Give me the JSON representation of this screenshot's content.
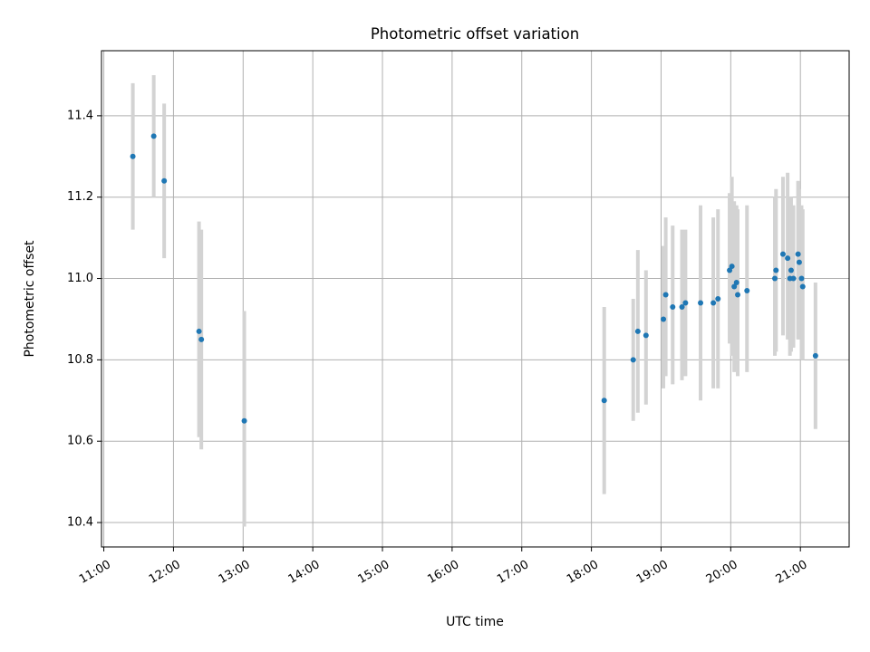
{
  "chart_data": {
    "type": "scatter",
    "title": "Photometric offset variation",
    "xlabel": "UTC time",
    "ylabel": "Photometric offset",
    "xlim": [
      "10:58",
      "21:42"
    ],
    "ylim": [
      10.34,
      11.56
    ],
    "x_ticks": [
      "11:00",
      "12:00",
      "13:00",
      "14:00",
      "15:00",
      "16:00",
      "17:00",
      "18:00",
      "19:00",
      "20:00",
      "21:00"
    ],
    "y_ticks": [
      "10.4",
      "10.6",
      "10.8",
      "11.0",
      "11.2",
      "11.4"
    ],
    "grid": true,
    "colors": {
      "point": "#1f77b4",
      "errorbar": "#d3d3d3",
      "grid": "#b0b0b0"
    },
    "series": [
      {
        "points": [
          {
            "x": "11:25",
            "y": 11.3,
            "ylow": 11.12,
            "yhigh": 11.48
          },
          {
            "x": "11:43",
            "y": 11.35,
            "ylow": 11.2,
            "yhigh": 11.5
          },
          {
            "x": "11:52",
            "y": 11.24,
            "ylow": 11.05,
            "yhigh": 11.43
          },
          {
            "x": "12:22",
            "y": 10.87,
            "ylow": 10.61,
            "yhigh": 11.14
          },
          {
            "x": "12:24",
            "y": 10.85,
            "ylow": 10.58,
            "yhigh": 11.12
          },
          {
            "x": "13:01",
            "y": 10.65,
            "ylow": 10.39,
            "yhigh": 10.92
          },
          {
            "x": "18:11",
            "y": 10.7,
            "ylow": 10.47,
            "yhigh": 10.93
          },
          {
            "x": "18:36",
            "y": 10.8,
            "ylow": 10.65,
            "yhigh": 10.95
          },
          {
            "x": "18:40",
            "y": 10.87,
            "ylow": 10.67,
            "yhigh": 11.07
          },
          {
            "x": "18:47",
            "y": 10.86,
            "ylow": 10.69,
            "yhigh": 11.02
          },
          {
            "x": "19:02",
            "y": 10.9,
            "ylow": 10.73,
            "yhigh": 11.08
          },
          {
            "x": "19:04",
            "y": 10.96,
            "ylow": 10.76,
            "yhigh": 11.15
          },
          {
            "x": "19:10",
            "y": 10.93,
            "ylow": 10.74,
            "yhigh": 11.13
          },
          {
            "x": "19:18",
            "y": 10.93,
            "ylow": 10.75,
            "yhigh": 11.12
          },
          {
            "x": "19:21",
            "y": 10.94,
            "ylow": 10.76,
            "yhigh": 11.12
          },
          {
            "x": "19:34",
            "y": 10.94,
            "ylow": 10.7,
            "yhigh": 11.18
          },
          {
            "x": "19:45",
            "y": 10.94,
            "ylow": 10.73,
            "yhigh": 11.15
          },
          {
            "x": "19:49",
            "y": 10.95,
            "ylow": 10.73,
            "yhigh": 11.17
          },
          {
            "x": "19:59",
            "y": 11.02,
            "ylow": 10.84,
            "yhigh": 11.21
          },
          {
            "x": "20:01",
            "y": 11.03,
            "ylow": 10.81,
            "yhigh": 11.25
          },
          {
            "x": "20:03",
            "y": 10.98,
            "ylow": 10.77,
            "yhigh": 11.19
          },
          {
            "x": "20:05",
            "y": 10.99,
            "ylow": 10.79,
            "yhigh": 11.18
          },
          {
            "x": "20:06",
            "y": 10.96,
            "ylow": 10.76,
            "yhigh": 11.17
          },
          {
            "x": "20:14",
            "y": 10.97,
            "ylow": 10.77,
            "yhigh": 11.18
          },
          {
            "x": "20:38",
            "y": 11.0,
            "ylow": 10.81,
            "yhigh": 11.2
          },
          {
            "x": "20:39",
            "y": 11.02,
            "ylow": 10.82,
            "yhigh": 11.22
          },
          {
            "x": "20:45",
            "y": 11.06,
            "ylow": 10.86,
            "yhigh": 11.25
          },
          {
            "x": "20:49",
            "y": 11.05,
            "ylow": 10.85,
            "yhigh": 11.26
          },
          {
            "x": "20:51",
            "y": 11.0,
            "ylow": 10.81,
            "yhigh": 11.2
          },
          {
            "x": "20:52",
            "y": 11.02,
            "ylow": 10.82,
            "yhigh": 11.2
          },
          {
            "x": "20:54",
            "y": 11.0,
            "ylow": 10.83,
            "yhigh": 11.18
          },
          {
            "x": "20:58",
            "y": 11.06,
            "ylow": 10.85,
            "yhigh": 11.24
          },
          {
            "x": "20:59",
            "y": 11.04,
            "ylow": 10.85,
            "yhigh": 11.22
          },
          {
            "x": "21:01",
            "y": 11.0,
            "ylow": 10.8,
            "yhigh": 11.18
          },
          {
            "x": "21:02",
            "y": 10.98,
            "ylow": 10.8,
            "yhigh": 11.17
          },
          {
            "x": "21:13",
            "y": 10.81,
            "ylow": 10.63,
            "yhigh": 10.99
          }
        ]
      }
    ]
  }
}
